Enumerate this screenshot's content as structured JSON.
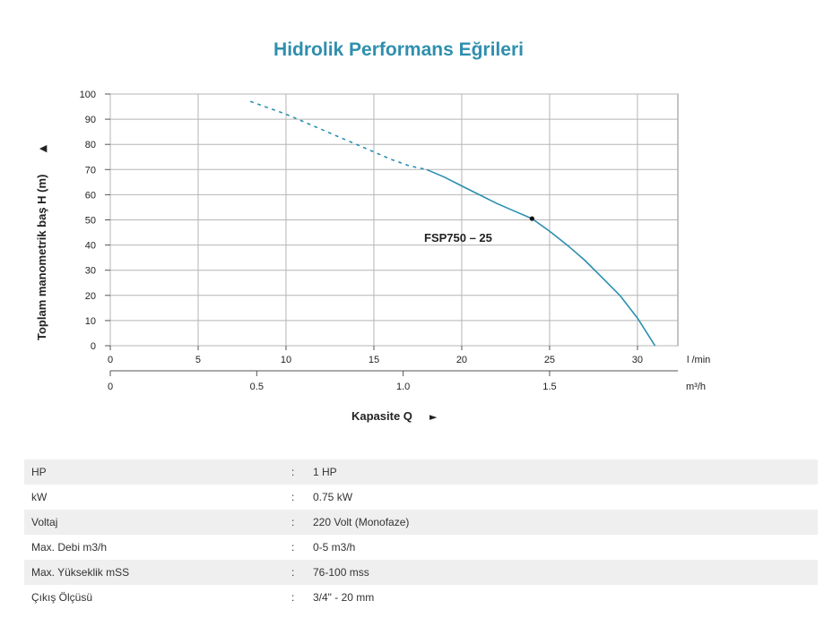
{
  "chart_data": {
    "type": "line",
    "title": "Hidrolik Performans Eğrileri",
    "ylabel": "Toplam manometrik baş H (m)",
    "ylabel_arrow": "▲",
    "xlabel": "Kapasite Q",
    "xlabel_arrow": "►",
    "ylim": [
      0,
      100
    ],
    "xlim": [
      0,
      32
    ],
    "y_ticks": [
      0,
      10,
      20,
      30,
      40,
      50,
      60,
      70,
      80,
      90,
      100
    ],
    "x_ticks": [
      0,
      5,
      10,
      15,
      20,
      25,
      30
    ],
    "x_unit": "l /min",
    "x2_ticks": [
      {
        "label": "0",
        "value": 0
      },
      {
        "label": "0.5",
        "value": 0.5
      },
      {
        "label": "1.0",
        "value": 1.0
      },
      {
        "label": "1.5",
        "value": 1.5
      }
    ],
    "x2_unit": "m³/h",
    "grid": true,
    "series": [
      {
        "name": "FSP750 – 25",
        "color": "#2a8fb0",
        "dashed": {
          "x": [
            8,
            9,
            10,
            11,
            12,
            13,
            14,
            15,
            16,
            17,
            18
          ],
          "y": [
            97,
            94.5,
            92,
            89,
            86,
            83,
            80,
            77,
            74,
            71.5,
            70
          ]
        },
        "solid": {
          "x": [
            18,
            19,
            20,
            21,
            22,
            23,
            24,
            25,
            26,
            27,
            28,
            29,
            30,
            31
          ],
          "y": [
            70,
            67,
            63.5,
            60,
            56.5,
            53.5,
            50.5,
            45.5,
            40,
            34,
            27,
            20,
            11,
            0
          ]
        },
        "marker": {
          "x": 24,
          "y": 50.5
        }
      }
    ]
  },
  "specs": [
    {
      "key": "HP",
      "sep": ":",
      "value": "1 HP"
    },
    {
      "key": "kW",
      "sep": ":",
      "value": "0.75 kW"
    },
    {
      "key": "Voltaj",
      "sep": ":",
      "value": "220 Volt (Monofaze)"
    },
    {
      "key": "Max. Debi m3/h",
      "sep": ":",
      "value": "0-5 m3/h"
    },
    {
      "key": "Max. Yükseklik mSS",
      "sep": ":",
      "value": "76-100 mss"
    },
    {
      "key": "Çıkış Ölçüsü",
      "sep": ":",
      "value": "3/4\" - 20 mm"
    }
  ]
}
